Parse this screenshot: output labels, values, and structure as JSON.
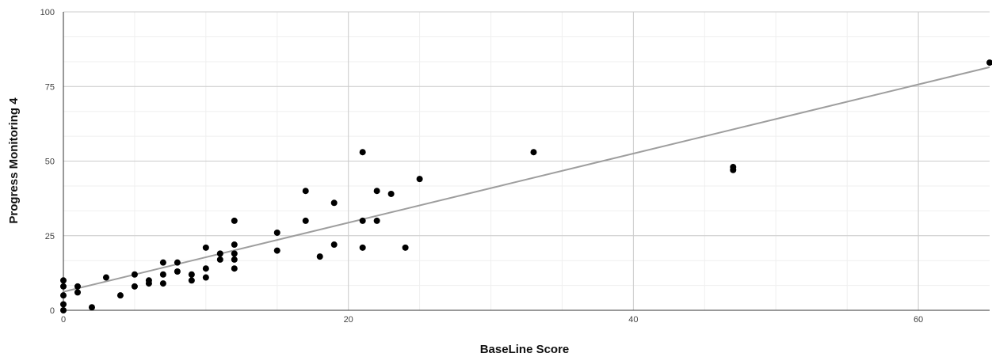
{
  "chart_data": {
    "type": "scatter",
    "title": "",
    "xlabel": "BaseLine Score",
    "ylabel": "Progress Monitoring 4",
    "xlim": [
      0,
      65
    ],
    "ylim": [
      0,
      100
    ],
    "x_ticks": [
      0,
      20,
      40,
      60
    ],
    "y_ticks": [
      0,
      25,
      50,
      75,
      100
    ],
    "x_minor_step": 5,
    "y_minor_step": 8.33,
    "grid": true,
    "legend": "none",
    "point_color": "#000000",
    "trendline": {
      "type": "linear",
      "color": "#9e9e9e",
      "intercept": 6.2,
      "slope": 1.158
    },
    "series": [
      {
        "points": [
          [
            0,
            10
          ],
          [
            0,
            8
          ],
          [
            0,
            5
          ],
          [
            0,
            2
          ],
          [
            0,
            0
          ],
          [
            1,
            8
          ],
          [
            1,
            6
          ],
          [
            2,
            1
          ],
          [
            3,
            11
          ],
          [
            4,
            5
          ],
          [
            5,
            12
          ],
          [
            5,
            8
          ],
          [
            6,
            10
          ],
          [
            6,
            9
          ],
          [
            7,
            16
          ],
          [
            7,
            12
          ],
          [
            7,
            9
          ],
          [
            8,
            16
          ],
          [
            8,
            13
          ],
          [
            9,
            12
          ],
          [
            9,
            10
          ],
          [
            10,
            21
          ],
          [
            10,
            14
          ],
          [
            10,
            11
          ],
          [
            11,
            19
          ],
          [
            11,
            17
          ],
          [
            12,
            30
          ],
          [
            12,
            22
          ],
          [
            12,
            19
          ],
          [
            12,
            17
          ],
          [
            12,
            14
          ],
          [
            15,
            26
          ],
          [
            15,
            20
          ],
          [
            17,
            40
          ],
          [
            17,
            30
          ],
          [
            18,
            18
          ],
          [
            19,
            36
          ],
          [
            19,
            22
          ],
          [
            21,
            53
          ],
          [
            21,
            30
          ],
          [
            21,
            21
          ],
          [
            22,
            40
          ],
          [
            22,
            30
          ],
          [
            23,
            39
          ],
          [
            24,
            21
          ],
          [
            25,
            44
          ],
          [
            33,
            53
          ],
          [
            47,
            48
          ],
          [
            47,
            47
          ],
          [
            65,
            83
          ]
        ]
      }
    ]
  }
}
